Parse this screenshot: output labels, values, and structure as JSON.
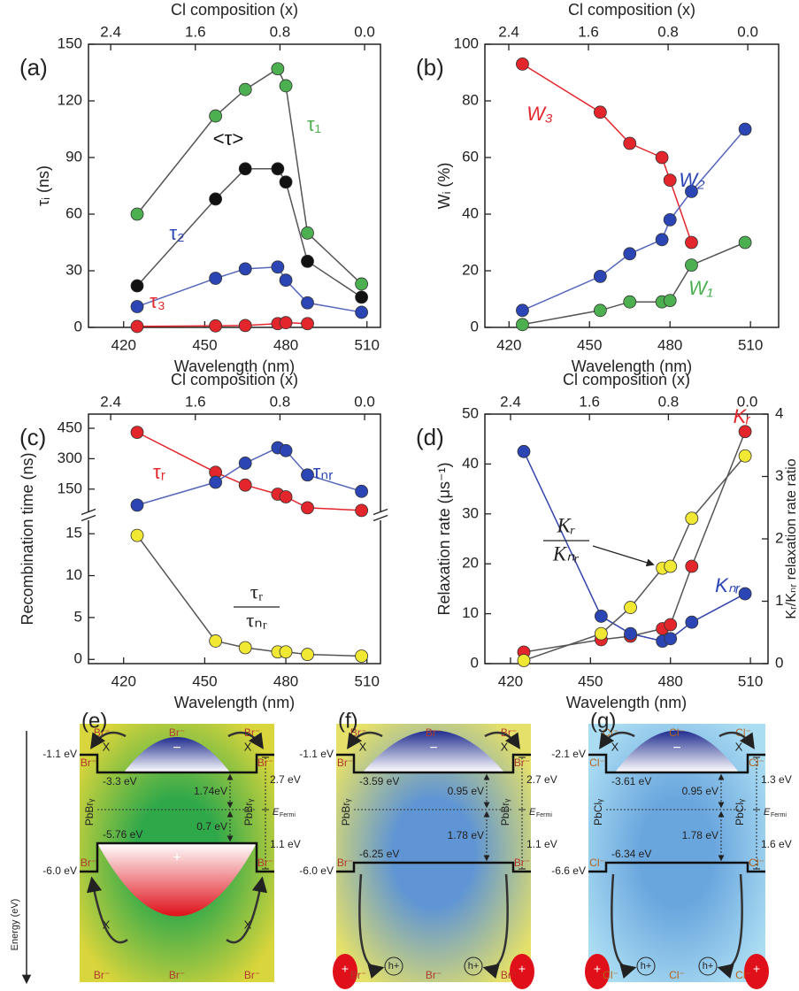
{
  "chart_data": [
    {
      "type": "line",
      "panel": "(a)",
      "xlabel": "Wavelength (nm)",
      "x2label": "Cl composition (x)",
      "ylabel": "τᵢ (ns)",
      "x": [
        425,
        454,
        465,
        477,
        480,
        488,
        508
      ],
      "xlim": [
        407,
        515
      ],
      "xticks": [
        420,
        450,
        480,
        510
      ],
      "x2lim": [
        2.61,
        -0.15
      ],
      "x2ticks": [
        2.4,
        1.6,
        0.8,
        {
          "value": 0,
          "label": "0.0"
        }
      ],
      "ylim": [
        0,
        150
      ],
      "yticks": [
        0,
        30,
        60,
        90,
        120,
        150
      ],
      "series": [
        {
          "name": "τ₁",
          "color": "#4caf50",
          "line_color": "#555555",
          "values": [
            60,
            112,
            126,
            137,
            128,
            50,
            23
          ]
        },
        {
          "name": "<τ>",
          "color": "#111111",
          "line_color": "#555555",
          "values": [
            22,
            68,
            84,
            84,
            77,
            35,
            16
          ]
        },
        {
          "name": "τ₂",
          "color": "#2b45b5",
          "line_color": "#5566bb",
          "values": [
            11,
            26,
            31,
            32,
            25,
            13,
            8
          ]
        },
        {
          "name": "τ₃",
          "color": "#e3262b",
          "line_color": "#e3262b",
          "values": [
            0.5,
            0.8,
            1,
            2,
            2.5,
            2,
            null
          ]
        }
      ]
    },
    {
      "type": "line",
      "panel": "(b)",
      "xlabel": "Wavelength (nm)",
      "x2label": "Cl composition (x)",
      "ylabel": "Wᵢ (%)",
      "x": [
        425,
        454,
        465,
        477,
        480,
        488,
        508
      ],
      "xlim": [
        411,
        520.5
      ],
      "xticks": [
        420,
        450,
        480,
        510
      ],
      "x2lim": [
        2.64,
        -0.31
      ],
      "x2ticks": [
        2.4,
        1.6,
        0.8,
        {
          "value": 0,
          "label": "0.0"
        }
      ],
      "ylim": [
        0,
        100
      ],
      "yticks": [
        0,
        20,
        40,
        60,
        80,
        100
      ],
      "series": [
        {
          "name": "W₃",
          "color": "#e3262b",
          "line_color": "#e3262b",
          "values": [
            93,
            76,
            65,
            60,
            52,
            30,
            null
          ]
        },
        {
          "name": "W₂",
          "color": "#2b45b5",
          "line_color": "#5566bb",
          "values": [
            6,
            18,
            26,
            31,
            38,
            48,
            70
          ]
        },
        {
          "name": "W₁",
          "color": "#4caf50",
          "line_color": "#555555",
          "values": [
            1,
            6,
            9,
            9,
            9.5,
            22,
            30
          ]
        }
      ]
    },
    {
      "type": "line",
      "panel": "(c)",
      "xlabel": "Wavelength (nm)",
      "x2label": "Cl composition (x)",
      "ylabel": "Recombination time (ns)",
      "x": [
        425,
        454,
        465,
        477,
        480,
        488,
        508
      ],
      "xlim": [
        407,
        515
      ],
      "xticks": [
        420,
        450,
        480,
        510
      ],
      "x2lim": [
        2.61,
        -0.15
      ],
      "x2ticks": [
        2.4,
        1.6,
        0.8,
        {
          "value": 0,
          "label": "0.0"
        }
      ],
      "ylim": [
        -0.5,
        16.5
      ],
      "yticks": [
        0,
        5,
        10,
        15
      ],
      "ylim_upper": [
        40,
        520
      ],
      "yticks_upper": [
        150,
        300,
        450
      ],
      "annotation": {
        "numerator": "τᵣ",
        "denominator": "τₙᵣ"
      },
      "series": [
        {
          "name": "τᵣ",
          "color": "#e3262b",
          "line_color": "#e3262b",
          "axis": "upper",
          "values": [
            430,
            233,
            170,
            125,
            112,
            58,
            45
          ]
        },
        {
          "name": "τₙᵣ",
          "color": "#2b45b5",
          "line_color": "#5566bb",
          "axis": "upper",
          "values": [
            71,
            184,
            278,
            354,
            340,
            220,
            139
          ]
        },
        {
          "color": "#f0e832",
          "line_color": "#555555",
          "values": [
            14.8,
            2.2,
            1.4,
            0.9,
            0.9,
            0.6,
            0.4
          ]
        }
      ]
    },
    {
      "type": "line",
      "panel": "(d)",
      "xlabel": "Wavelength (nm)",
      "x2label": "Cl composition (x)",
      "ylabel": "Relaxation rate (μs⁻¹)",
      "y2label": "Kᵣ/Kₙᵣ relaxation rate ratio",
      "x": [
        425,
        454,
        465,
        477,
        480,
        488,
        508
      ],
      "xlim": [
        410.4,
        516.6
      ],
      "xticks": [
        420,
        450,
        480,
        510
      ],
      "x2lim": [
        2.66,
        -0.21
      ],
      "x2ticks": [
        2.4,
        1.6,
        0.8,
        {
          "value": 0,
          "label": "0.0"
        }
      ],
      "ylim": [
        0,
        50
      ],
      "yticks": [
        0,
        10,
        20,
        30,
        40,
        50
      ],
      "y2lim": [
        0,
        4
      ],
      "y2ticks": [
        0,
        1,
        2,
        3,
        4
      ],
      "annotation": {
        "numerator": "Kᵣ",
        "denominator": "Kₙᵣ"
      },
      "series": [
        {
          "name": "Kᵣ",
          "color": "#e3262b",
          "line_color": "#555555",
          "values": [
            2.3,
            4.8,
            5.5,
            7,
            7.8,
            19.5,
            46.5
          ]
        },
        {
          "name": "Kₙᵣ",
          "color": "#2b45b5",
          "line_color": "#3344aa",
          "values": [
            42.5,
            9.5,
            6,
            4.5,
            5,
            8.3,
            14
          ]
        },
        {
          "color": "#f0e832",
          "line_color": "#555555",
          "axis": "y2",
          "values": [
            0.05,
            0.48,
            0.9,
            1.53,
            1.56,
            2.33,
            3.33
          ]
        }
      ]
    }
  ],
  "energy_axis_label": "Energy (eV)",
  "diagrams": [
    {
      "label": "(e)",
      "ion": "Br⁻",
      "top_left": "-1.1 eV",
      "bottom_left": "-6.0 eV",
      "inner_top": "-3.3 eV",
      "inner_bottom": "-5.76 eV",
      "gap_upper": "1.74eV",
      "gap_lower": "0.7 eV",
      "right_upper": "2.7 eV",
      "right_lower": "1.1 eV",
      "layer": "PbBrᵧ",
      "fermi": "E",
      "fermi_sub": "Fermi",
      "exciton": "X",
      "electron": "−",
      "hole": "+"
    },
    {
      "label": "(f)",
      "ion": "Br⁻",
      "top_left": "-1.1 eV",
      "bottom_left": "-6.0 eV",
      "inner_top": "-3.59 eV",
      "inner_bottom": "-6.25 eV",
      "gap_upper": "0.95 eV",
      "gap_lower": "1.78 eV",
      "right_upper": "2.7 eV",
      "right_lower": "1.1 eV",
      "layer": "PbBrᵧ",
      "fermi": "E",
      "fermi_sub": "Fermi",
      "exciton": "X",
      "electron": "−",
      "hole": "+",
      "free_hole": "h+"
    },
    {
      "label": "(g)",
      "ion": "Cl⁻",
      "top_left": "-2.1 eV",
      "bottom_left": "-6.6 eV",
      "inner_top": "-3.61 eV",
      "inner_bottom": "-6.34 eV",
      "gap_upper": "0.95 eV",
      "gap_lower": "1.78 eV",
      "right_upper": "1.3 eV",
      "right_lower": "1.6 eV",
      "layer": "PbClᵧ",
      "fermi": "E",
      "fermi_sub": "Fermi",
      "exciton": "X",
      "electron": "−",
      "hole": "+",
      "free_hole": "h+"
    }
  ]
}
